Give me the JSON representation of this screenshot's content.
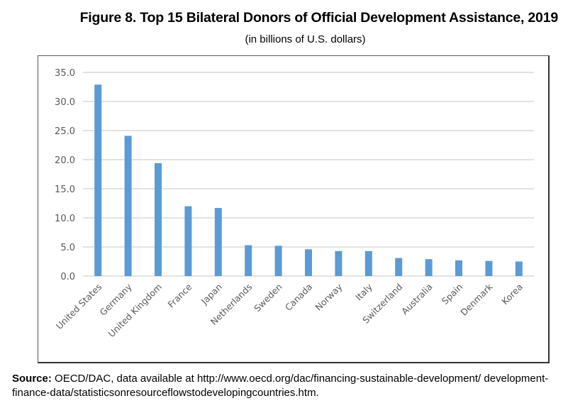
{
  "figure": {
    "title": "Figure 8. Top 15 Bilateral Donors of Official Development Assistance, 2019",
    "subtitle": "(in billions of U.S. dollars)"
  },
  "source": {
    "label": "Source:",
    "text": " OECD/DAC, data available at http://www.oecd.org/dac/financing-sustainable-development/ development-finance-data/statisticsonresourceflowstodevelopingcountries.htm."
  },
  "chart_data": {
    "type": "bar",
    "title": "Figure 8. Top 15 Bilateral Donors of Official Development Assistance, 2019",
    "subtitle": "(in billions of U.S. dollars)",
    "xlabel": "",
    "ylabel": "",
    "categories": [
      "United States",
      "Germany",
      "United Kingdom",
      "France",
      "Japan",
      "Netherlands",
      "Sweden",
      "Canada",
      "Norway",
      "Italy",
      "Switzerland",
      "Australia",
      "Spain",
      "Denmark",
      "Korea"
    ],
    "values": [
      32.9,
      24.1,
      19.4,
      12.0,
      11.7,
      5.3,
      5.2,
      4.6,
      4.3,
      4.3,
      3.1,
      2.9,
      2.7,
      2.6,
      2.5
    ],
    "ylim": [
      0,
      35
    ],
    "yticks": [
      "0.0",
      "5.0",
      "10.0",
      "15.0",
      "20.0",
      "25.0",
      "30.0",
      "35.0"
    ],
    "ytick_values": [
      0,
      5,
      10,
      15,
      20,
      25,
      30,
      35
    ],
    "grid": true,
    "legend": "none",
    "bar_color": "#5B9BD5",
    "grid_color": "#D9D9D9"
  }
}
